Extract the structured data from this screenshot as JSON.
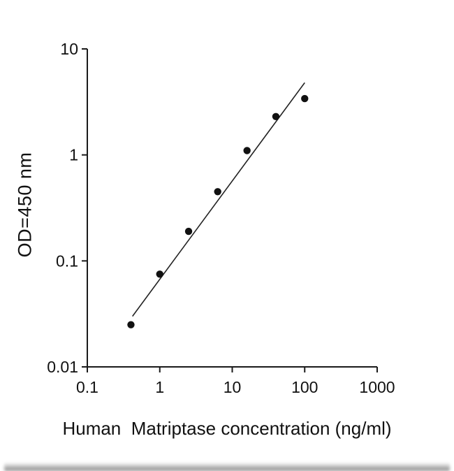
{
  "chart_data": {
    "type": "scatter",
    "title": "",
    "xlabel": "Human  Matriptase concentration (ng/ml)",
    "ylabel": "OD=450 nm",
    "x_scale": "log",
    "y_scale": "log",
    "xlim": [
      0.1,
      1000
    ],
    "ylim": [
      0.01,
      10
    ],
    "x_ticks": [
      0.1,
      1,
      10,
      100,
      1000
    ],
    "x_tick_labels": [
      "0.1",
      "1",
      "10",
      "100",
      "1000"
    ],
    "y_ticks": [
      0.01,
      0.1,
      1,
      10
    ],
    "y_tick_labels": [
      "0.01",
      "0.1",
      "1",
      "10"
    ],
    "grid": false,
    "legend": null,
    "series": [
      {
        "name": "standard-curve-points",
        "marker": "filled-circle",
        "x": [
          0.4,
          1,
          2.5,
          6.3,
          16,
          40,
          100
        ],
        "y": [
          0.025,
          0.075,
          0.19,
          0.45,
          1.1,
          2.3,
          3.4
        ]
      }
    ],
    "fit_line": {
      "x": [
        0.42,
        100
      ],
      "y": [
        0.03,
        4.8
      ]
    },
    "marker_color": "#111111",
    "line_color": "#222222",
    "axis_color": "#1a1a1a"
  }
}
